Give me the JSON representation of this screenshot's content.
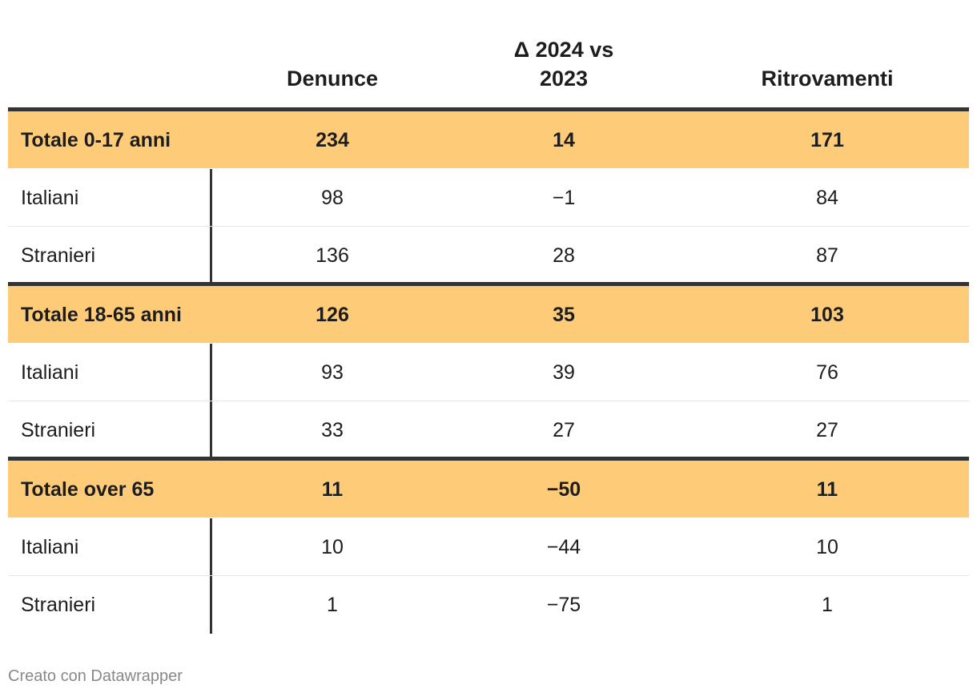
{
  "chart_data": {
    "type": "table",
    "columns": [
      "",
      "Denunce",
      "Δ 2024 vs 2023",
      "Ritrovamenti"
    ],
    "groups": [
      {
        "total": {
          "label": "Totale 0-17 anni",
          "denunce": "234",
          "delta": "14",
          "ritrovamenti": "171"
        },
        "rows": [
          {
            "label": "Italiani",
            "denunce": "98",
            "delta": "−1",
            "ritrovamenti": "84"
          },
          {
            "label": "Stranieri",
            "denunce": "136",
            "delta": "28",
            "ritrovamenti": "87"
          }
        ]
      },
      {
        "total": {
          "label": "Totale 18-65 anni",
          "denunce": "126",
          "delta": "35",
          "ritrovamenti": "103"
        },
        "rows": [
          {
            "label": "Italiani",
            "denunce": "93",
            "delta": "39",
            "ritrovamenti": "76"
          },
          {
            "label": "Stranieri",
            "denunce": "33",
            "delta": "27",
            "ritrovamenti": "27"
          }
        ]
      },
      {
        "total": {
          "label": "Totale over 65",
          "denunce": "11",
          "delta": "−50",
          "ritrovamenti": "11"
        },
        "rows": [
          {
            "label": "Italiani",
            "denunce": "10",
            "delta": "−44",
            "ritrovamenti": "10"
          },
          {
            "label": "Stranieri",
            "denunce": "1",
            "delta": "−75",
            "ritrovamenti": "1"
          }
        ]
      }
    ]
  },
  "header": {
    "denunce": "Denunce",
    "delta_line1": "Δ 2024 vs",
    "delta_line2": "2023",
    "ritrovamenti": "Ritrovamenti"
  },
  "footer": {
    "credit": "Creato con Datawrapper"
  },
  "colors": {
    "total_row_bg": "#fecb78",
    "rule": "#333333"
  }
}
